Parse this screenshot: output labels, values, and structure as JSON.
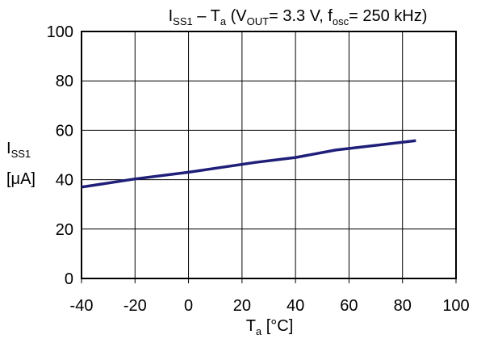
{
  "chart_data": {
    "type": "line",
    "title": {
      "parts": [
        {
          "text": "I",
          "sub": false
        },
        {
          "text": "SS1",
          "sub": true
        },
        {
          "text": " – T",
          "sub": false
        },
        {
          "text": "a",
          "sub": true
        },
        {
          "text": " (V",
          "sub": false
        },
        {
          "text": "OUT",
          "sub": true
        },
        {
          "text": "= 3.3 V, f",
          "sub": false
        },
        {
          "text": "osc",
          "sub": true
        },
        {
          "text": "= 250 kHz)",
          "sub": false
        }
      ]
    },
    "xlabel": {
      "main": "T",
      "sub": "a",
      "unit": " [°C]"
    },
    "ylabel": {
      "main": "I",
      "sub": "SS1",
      "unit": "[μA]"
    },
    "xlim": [
      -40,
      100
    ],
    "ylim": [
      0,
      100
    ],
    "xticks": [
      -40,
      -20,
      0,
      20,
      40,
      60,
      80,
      100
    ],
    "yticks": [
      0,
      20,
      40,
      60,
      80,
      100
    ],
    "grid": true,
    "series": [
      {
        "color": "#1f1f7a",
        "x": [
          -40,
          -20,
          0,
          25,
          40,
          55,
          85
        ],
        "y": [
          37.0,
          40.3,
          43.0,
          47.0,
          49.0,
          52.0,
          55.8
        ]
      }
    ]
  }
}
